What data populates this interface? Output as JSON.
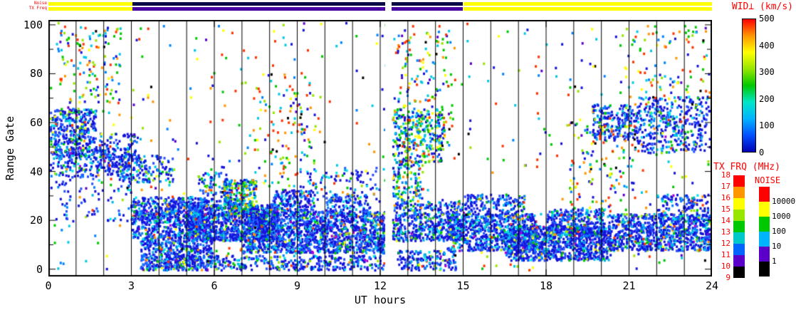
{
  "figure": {
    "strip_labels": {
      "noise": "Noise",
      "txfreq": "TX Freq"
    }
  },
  "axes": {
    "xlabel": "UT hours",
    "ylabel": "Range Gate"
  },
  "legends": {
    "wid": {
      "title": "WID⊥ (km/s)",
      "min": 0,
      "max": 500,
      "ticks": [
        500,
        400,
        300,
        200,
        100,
        0
      ],
      "gradient_top_to_bottom": [
        "#ff0000",
        "#ff9600",
        "#ffff00",
        "#96e600",
        "#00c800",
        "#00e6c8",
        "#00b4ff",
        "#0050ff",
        "#0000b4"
      ]
    },
    "txfrq": {
      "title": "TX FRQ (MHz)",
      "ticks": [
        18,
        17,
        16,
        15,
        14,
        13,
        12,
        11,
        10,
        9
      ],
      "boxes_top_to_bottom": [
        "#ff0000",
        "#ff9600",
        "#ffff00",
        "#96e600",
        "#00c800",
        "#00c8c8",
        "#0064ff",
        "#5a00c8",
        "#000000"
      ]
    },
    "noise": {
      "title": "NOISE",
      "ticks": [
        10000,
        1000,
        100,
        10,
        1
      ],
      "boxes_top_to_bottom": [
        "#ff0000",
        "#ffff00",
        "#00c800",
        "#00b4ff",
        "#5a00c8",
        "#000000"
      ]
    }
  },
  "chart_data": {
    "type": "heatmap",
    "title": "SuperDARN range-time parameter plot, perpendicular spectral width",
    "xlabel": "UT hours",
    "ylabel": "Range Gate",
    "xlim": [
      0,
      24
    ],
    "ylim": [
      0,
      100
    ],
    "xticks": [
      0,
      3,
      6,
      9,
      12,
      15,
      18,
      21,
      24
    ],
    "yticks": [
      0,
      20,
      40,
      60,
      80,
      100
    ],
    "hour_gridlines_every": 1,
    "data_gap_hours": [
      12.18,
      12.42
    ],
    "colorscale": {
      "label": "WID⊥ (km/s)",
      "min": 0,
      "max": 500,
      "stops": [
        [
          0,
          "#0000b4"
        ],
        [
          90,
          "#0046ff"
        ],
        [
          140,
          "#00b4ff"
        ],
        [
          180,
          "#00e6dc"
        ],
        [
          240,
          "#00c800"
        ],
        [
          320,
          "#8ce600"
        ],
        [
          380,
          "#ffff00"
        ],
        [
          440,
          "#ff9600"
        ],
        [
          500,
          "#ff0000"
        ]
      ]
    },
    "top_bars": {
      "noise_bar": {
        "label": "Noise",
        "segments": [
          [
            0,
            3.05,
            "#ffff00"
          ],
          [
            3.05,
            12.18,
            "#0a0a46"
          ],
          [
            12.42,
            15.0,
            "#0a0a46"
          ],
          [
            15.0,
            24,
            "#ffff00"
          ]
        ]
      },
      "txfreq_bar": {
        "label": "TX Freq",
        "segments": [
          [
            0,
            3.05,
            "#ffff00"
          ],
          [
            3.05,
            12.18,
            "#4600a0"
          ],
          [
            12.42,
            15.0,
            "#4600a0"
          ],
          [
            15.0,
            24,
            "#ffff00"
          ]
        ]
      }
    },
    "palettes": {
      "B": [
        [
          "#1414dc",
          48
        ],
        [
          "#2850ff",
          18
        ],
        [
          "#0082ff",
          10
        ],
        [
          "#00b4e6",
          8
        ],
        [
          "#00e6e6",
          6
        ],
        [
          "#00c800",
          4
        ],
        [
          "#96e600",
          2
        ],
        [
          "#ffff00",
          1
        ],
        [
          "#ff3200",
          1
        ],
        [
          "#ff9600",
          1
        ],
        [
          "#aa00d2",
          1
        ]
      ],
      "BC": [
        [
          "#1414dc",
          26
        ],
        [
          "#0082ff",
          16
        ],
        [
          "#00c8e6",
          20
        ],
        [
          "#00c800",
          18
        ],
        [
          "#96e600",
          8
        ],
        [
          "#ffff00",
          5
        ],
        [
          "#ff9600",
          3
        ],
        [
          "#ff3200",
          4
        ]
      ],
      "R": [
        [
          "#1414dc",
          14
        ],
        [
          "#0082ff",
          10
        ],
        [
          "#00c8e6",
          13
        ],
        [
          "#00c800",
          16
        ],
        [
          "#96e600",
          9
        ],
        [
          "#ffff00",
          7
        ],
        [
          "#ff9600",
          9
        ],
        [
          "#ff3200",
          14
        ],
        [
          "#5a00c8",
          4
        ],
        [
          "#000000",
          4
        ]
      ]
    },
    "regions": [
      [
        0.0,
        1.7,
        46,
        66,
        380,
        "B"
      ],
      [
        0.0,
        2.9,
        38,
        50,
        240,
        "B"
      ],
      [
        1.8,
        3.3,
        42,
        56,
        120,
        "B"
      ],
      [
        2.6,
        4.5,
        36,
        47,
        130,
        "B"
      ],
      [
        3.0,
        5.7,
        13,
        30,
        750,
        "B"
      ],
      [
        3.3,
        5.9,
        0,
        14,
        520,
        "B"
      ],
      [
        5.0,
        8.3,
        12,
        27,
        950,
        "B"
      ],
      [
        6.3,
        7.5,
        22,
        37,
        280,
        "BC"
      ],
      [
        7.0,
        12.18,
        7,
        24,
        1500,
        "B"
      ],
      [
        8.1,
        9.6,
        24,
        33,
        170,
        "B"
      ],
      [
        4.2,
        12.18,
        0,
        6,
        400,
        "B"
      ],
      [
        10.0,
        11.6,
        22,
        31,
        130,
        "B"
      ],
      [
        12.42,
        14.3,
        44,
        66,
        320,
        "BC"
      ],
      [
        12.42,
        13.5,
        28,
        45,
        130,
        "BC"
      ],
      [
        12.42,
        15.0,
        12,
        28,
        520,
        "B"
      ],
      [
        12.6,
        14.7,
        0,
        8,
        160,
        "B"
      ],
      [
        14.4,
        17.6,
        8,
        23,
        750,
        "B"
      ],
      [
        15.0,
        17.2,
        23,
        31,
        160,
        "B"
      ],
      [
        16.5,
        20.3,
        4,
        18,
        950,
        "B"
      ],
      [
        18.0,
        20.1,
        14,
        25,
        320,
        "B"
      ],
      [
        19.6,
        21.3,
        53,
        68,
        220,
        "B"
      ],
      [
        20.2,
        24.0,
        8,
        23,
        850,
        "B"
      ],
      [
        21.3,
        24.0,
        48,
        71,
        380,
        "B"
      ],
      [
        22.0,
        24.0,
        20,
        31,
        160,
        "B"
      ],
      [
        5.4,
        6.6,
        26,
        40,
        100,
        "B"
      ],
      [
        9.0,
        12.0,
        28,
        42,
        90,
        "B"
      ],
      [
        0.0,
        3.0,
        20,
        38,
        80,
        "B"
      ],
      [
        0.3,
        2.6,
        62,
        100,
        130,
        "R"
      ],
      [
        7.4,
        9.6,
        33,
        76,
        110,
        "R"
      ],
      [
        12.3,
        14.6,
        52,
        100,
        140,
        "R"
      ],
      [
        18.8,
        21.2,
        24,
        62,
        130,
        "R"
      ],
      [
        20.8,
        24.0,
        68,
        100,
        100,
        "R"
      ],
      [
        0.0,
        24.0,
        0,
        102,
        550,
        "R"
      ]
    ]
  }
}
